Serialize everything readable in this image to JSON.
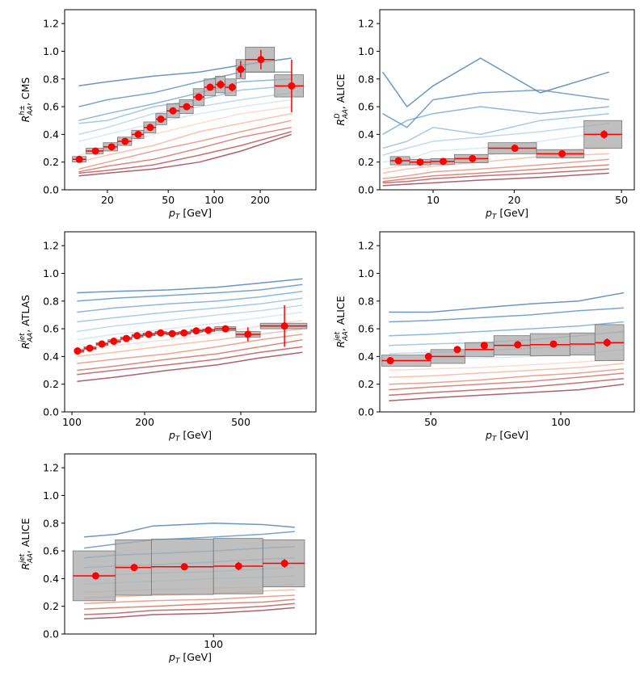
{
  "chart_data": [
    {
      "type": "errorbar",
      "log_x": true,
      "x_label": {
        "main": "p",
        "sub": "T",
        "rest": "[GeV]"
      },
      "y_label": {
        "main": "R",
        "sub": "AA",
        "sup": "h±",
        "rest": ", CMS"
      },
      "xlim": [
        10.5,
        463
      ],
      "xticks": [
        20,
        50,
        100,
        200
      ],
      "ylim": [
        0,
        1.3
      ],
      "yticks": [
        {
          "value": 0,
          "label": "0.0"
        },
        {
          "value": 0.2,
          "label": "0.2"
        },
        {
          "value": 0.4,
          "label": "0.4"
        },
        {
          "value": 0.6,
          "label": "0.6"
        },
        {
          "value": 0.8,
          "label": "0.8"
        },
        {
          "value": 1,
          "label": "1.0"
        },
        {
          "value": 1.2,
          "label": "1.2"
        }
      ],
      "color": "#ff0000",
      "box_color": "#a9a9a9",
      "x": [
        13.1,
        16.7,
        21.3,
        26.1,
        31.8,
        38.1,
        44.7,
        53.7,
        66.0,
        79.3,
        94.0,
        110,
        131,
        149,
        202,
        321
      ],
      "values": [
        0.22,
        0.28,
        0.31,
        0.35,
        0.4,
        0.45,
        0.51,
        0.57,
        0.6,
        0.67,
        0.74,
        0.76,
        0.74,
        0.87,
        0.94,
        0.75
      ],
      "stat": [
        0.01,
        0.01,
        0.01,
        0.01,
        0.01,
        0.01,
        0.01,
        0.01,
        0.01,
        0.02,
        0.02,
        0.03,
        0.03,
        0.06,
        0.07,
        0.19
      ],
      "sys": [
        0.02,
        0.02,
        0.03,
        0.03,
        0.03,
        0.04,
        0.04,
        0.05,
        0.05,
        0.06,
        0.06,
        0.06,
        0.06,
        0.07,
        0.09,
        0.08
      ],
      "bin_edges": [
        11.8,
        14.5,
        18.8,
        23.3,
        28.8,
        34.6,
        41.5,
        48.9,
        59.2,
        72.9,
        86.0,
        102,
        118,
        139,
        160,
        248,
        384
      ],
      "curve_x": [
        13,
        20,
        40,
        80,
        150,
        320
      ],
      "curve_colors": [
        "#2c6aa6",
        "#3f7fb5",
        "#5d9ac7",
        "#7fb3d6",
        "#a4cce3",
        "#c8e0ee",
        "#f6d0bf",
        "#f2a98b",
        "#e07d62",
        "#cc5545",
        "#b23236",
        "#8e1c2e"
      ],
      "curves": [
        [
          0.75,
          0.78,
          0.82,
          0.85,
          0.9,
          0.95
        ],
        [
          0.6,
          0.65,
          0.7,
          0.78,
          0.85,
          0.85
        ],
        [
          0.5,
          0.55,
          0.62,
          0.7,
          0.78,
          0.8
        ],
        [
          0.48,
          0.5,
          0.6,
          0.65,
          0.72,
          0.75
        ],
        [
          0.4,
          0.45,
          0.55,
          0.6,
          0.65,
          0.7
        ],
        [
          0.35,
          0.4,
          0.48,
          0.55,
          0.6,
          0.65
        ],
        [
          0.25,
          0.3,
          0.4,
          0.48,
          0.55,
          0.6
        ],
        [
          0.2,
          0.25,
          0.32,
          0.42,
          0.48,
          0.55
        ],
        [
          0.15,
          0.2,
          0.28,
          0.35,
          0.42,
          0.5
        ],
        [
          0.13,
          0.17,
          0.22,
          0.3,
          0.38,
          0.45
        ],
        [
          0.12,
          0.14,
          0.18,
          0.25,
          0.32,
          0.42
        ],
        [
          0.1,
          0.12,
          0.15,
          0.2,
          0.28,
          0.4
        ]
      ]
    },
    {
      "type": "errorbar",
      "log_x": true,
      "x_label": {
        "main": "p",
        "sub": "T",
        "rest": "[GeV]"
      },
      "y_label": {
        "main": "R",
        "sub": "AA",
        "sup": "D",
        "rest": ", ALICE"
      },
      "xlim": [
        6.34,
        55.8
      ],
      "xticks": [
        10,
        20,
        50
      ],
      "ylim": [
        0,
        1.3
      ],
      "yticks": [
        {
          "value": 0,
          "label": "0.0"
        },
        {
          "value": 0.2,
          "label": "0.2"
        },
        {
          "value": 0.4,
          "label": "0.4"
        },
        {
          "value": 0.6,
          "label": "0.6"
        },
        {
          "value": 0.8,
          "label": "0.8"
        },
        {
          "value": 1,
          "label": "1.0"
        },
        {
          "value": 1.2,
          "label": "1.2"
        }
      ],
      "color": "#ff0000",
      "box_color": "#a9a9a9",
      "x": [
        7.44,
        8.95,
        10.9,
        14.0,
        20.1,
        30.1,
        43.1
      ],
      "values": [
        0.21,
        0.2,
        0.205,
        0.225,
        0.3,
        0.26,
        0.4
      ],
      "stat": [
        0.02,
        0.01,
        0.01,
        0.01,
        0.01,
        0.02,
        0.03
      ],
      "sys": [
        0.03,
        0.02,
        0.02,
        0.03,
        0.04,
        0.03,
        0.1
      ],
      "bin_edges": [
        6.94,
        8.19,
        9.8,
        12.0,
        16.0,
        24.2,
        36.3,
        50.2
      ],
      "curve_x": [
        6.5,
        8,
        10,
        15,
        25,
        45
      ],
      "curve_colors": [
        "#2c6aa6",
        "#3f7fb5",
        "#5d9ac7",
        "#7fb3d6",
        "#a4cce3",
        "#c8e0ee",
        "#f6d0bf",
        "#f2a98b",
        "#e07d62",
        "#cc5545",
        "#b23236",
        "#8e1c2e"
      ],
      "curves": [
        [
          0.85,
          0.6,
          0.75,
          0.95,
          0.7,
          0.85
        ],
        [
          0.55,
          0.45,
          0.65,
          0.7,
          0.72,
          0.65
        ],
        [
          0.4,
          0.5,
          0.55,
          0.6,
          0.55,
          0.6
        ],
        [
          0.3,
          0.35,
          0.45,
          0.4,
          0.5,
          0.55
        ],
        [
          0.25,
          0.3,
          0.35,
          0.38,
          0.42,
          0.48
        ],
        [
          0.2,
          0.22,
          0.28,
          0.3,
          0.35,
          0.42
        ],
        [
          0.15,
          0.18,
          0.2,
          0.25,
          0.28,
          0.3
        ],
        [
          0.12,
          0.15,
          0.17,
          0.2,
          0.24,
          0.26
        ],
        [
          0.08,
          0.1,
          0.13,
          0.15,
          0.18,
          0.22
        ],
        [
          0.06,
          0.08,
          0.1,
          0.12,
          0.15,
          0.18
        ],
        [
          0.05,
          0.06,
          0.08,
          0.1,
          0.12,
          0.15
        ],
        [
          0.03,
          0.04,
          0.05,
          0.07,
          0.09,
          0.12
        ]
      ]
    },
    {
      "type": "errorbar",
      "log_x": true,
      "x_label": {
        "main": "p",
        "sub": "T",
        "rest": "[GeV]"
      },
      "y_label": {
        "main": "R",
        "sub": "AA",
        "sup": "jet",
        "rest": ", ATLAS"
      },
      "xlim": [
        93.3,
        1023
      ],
      "xticks": [
        100,
        200,
        500
      ],
      "ylim": [
        0,
        1.3
      ],
      "yticks": [
        {
          "value": 0,
          "label": "0.0"
        },
        {
          "value": 0.2,
          "label": "0.2"
        },
        {
          "value": 0.4,
          "label": "0.4"
        },
        {
          "value": 0.6,
          "label": "0.6"
        },
        {
          "value": 0.8,
          "label": "0.8"
        },
        {
          "value": 1,
          "label": "1.0"
        },
        {
          "value": 1.2,
          "label": "1.2"
        }
      ],
      "color": "#ff0000",
      "box_color": "#a9a9a9",
      "x": [
        105.5,
        118.5,
        133,
        149,
        168,
        186,
        208,
        233,
        260,
        291,
        327,
        367,
        432,
        535,
        758
      ],
      "values": [
        0.44,
        0.46,
        0.49,
        0.51,
        0.53,
        0.55,
        0.56,
        0.57,
        0.565,
        0.57,
        0.585,
        0.59,
        0.6,
        0.56,
        0.62
      ],
      "stat": [
        0.005,
        0.005,
        0.005,
        0.005,
        0.005,
        0.005,
        0.005,
        0.005,
        0.005,
        0.01,
        0.01,
        0.01,
        0.02,
        0.05,
        0.15
      ],
      "sys": [
        0.01,
        0.01,
        0.01,
        0.01,
        0.01,
        0.01,
        0.01,
        0.01,
        0.01,
        0.01,
        0.01,
        0.01,
        0.015,
        0.02,
        0.02
      ],
      "bin_edges": [
        102.3,
        112.2,
        126,
        141,
        159,
        177,
        197,
        221,
        246,
        276,
        310,
        348,
        390,
        477,
        602,
        939
      ],
      "curve_x": [
        105,
        150,
        250,
        400,
        600,
        900
      ],
      "curve_colors": [
        "#2c6aa6",
        "#3f7fb5",
        "#5d9ac7",
        "#7fb3d6",
        "#a4cce3",
        "#c8e0ee",
        "#f6d0bf",
        "#f2a98b",
        "#e07d62",
        "#cc5545",
        "#b23236",
        "#8e1c2e"
      ],
      "curves": [
        [
          0.86,
          0.87,
          0.88,
          0.9,
          0.93,
          0.96
        ],
        [
          0.8,
          0.82,
          0.84,
          0.86,
          0.88,
          0.92
        ],
        [
          0.72,
          0.75,
          0.78,
          0.8,
          0.83,
          0.87
        ],
        [
          0.65,
          0.68,
          0.72,
          0.75,
          0.78,
          0.82
        ],
        [
          0.58,
          0.62,
          0.66,
          0.7,
          0.73,
          0.77
        ],
        [
          0.52,
          0.56,
          0.6,
          0.64,
          0.68,
          0.72
        ],
        [
          0.45,
          0.48,
          0.52,
          0.57,
          0.62,
          0.66
        ],
        [
          0.4,
          0.43,
          0.48,
          0.52,
          0.56,
          0.6
        ],
        [
          0.35,
          0.38,
          0.42,
          0.47,
          0.52,
          0.56
        ],
        [
          0.3,
          0.33,
          0.38,
          0.42,
          0.47,
          0.52
        ],
        [
          0.27,
          0.3,
          0.34,
          0.38,
          0.43,
          0.47
        ],
        [
          0.22,
          0.25,
          0.3,
          0.34,
          0.39,
          0.43
        ]
      ]
    },
    {
      "type": "errorbar",
      "log_x": true,
      "x_label": {
        "main": "p",
        "sub": "T",
        "rest": "[GeV]"
      },
      "y_label": {
        "main": "R",
        "sub": "AA",
        "sup": "jet",
        "rest": ", ALICE"
      },
      "xlim": [
        38.1,
        148
      ],
      "xticks": [
        50,
        100
      ],
      "ylim": [
        0,
        1.3
      ],
      "yticks": [
        {
          "value": 0,
          "label": "0.0"
        },
        {
          "value": 0.2,
          "label": "0.2"
        },
        {
          "value": 0.4,
          "label": "0.4"
        },
        {
          "value": 0.6,
          "label": "0.6"
        },
        {
          "value": 0.8,
          "label": "0.8"
        },
        {
          "value": 1,
          "label": "1.0"
        },
        {
          "value": 1.2,
          "label": "1.2"
        }
      ],
      "color": "#ff0000",
      "box_color": "#a9a9a9",
      "x": [
        40.3,
        49.4,
        57.6,
        66.5,
        79.5,
        96.2,
        128
      ],
      "values": [
        0.37,
        0.4,
        0.45,
        0.48,
        0.485,
        0.49,
        0.5
      ],
      "stat": [
        0.02,
        0.02,
        0.02,
        0.02,
        0.02,
        0.02,
        0.03
      ],
      "sys": [
        0.04,
        0.05,
        0.05,
        0.07,
        0.08,
        0.08,
        0.13
      ],
      "bin_edges": [
        38.5,
        50,
        60,
        70,
        85,
        105,
        120,
        140
      ],
      "curve_x": [
        40,
        50,
        65,
        85,
        110,
        140
      ],
      "curve_colors": [
        "#2c6aa6",
        "#3f7fb5",
        "#5d9ac7",
        "#7fb3d6",
        "#a4cce3",
        "#c8e0ee",
        "#f6d0bf",
        "#f2a98b",
        "#e07d62",
        "#cc5545",
        "#b23236",
        "#8e1c2e"
      ],
      "curves": [
        [
          0.72,
          0.72,
          0.75,
          0.78,
          0.8,
          0.86
        ],
        [
          0.65,
          0.66,
          0.68,
          0.7,
          0.73,
          0.75
        ],
        [
          0.55,
          0.56,
          0.58,
          0.6,
          0.62,
          0.65
        ],
        [
          0.48,
          0.49,
          0.5,
          0.52,
          0.55,
          0.58
        ],
        [
          0.42,
          0.43,
          0.44,
          0.46,
          0.48,
          0.5
        ],
        [
          0.37,
          0.38,
          0.39,
          0.4,
          0.42,
          0.45
        ],
        [
          0.3,
          0.31,
          0.32,
          0.34,
          0.36,
          0.38
        ],
        [
          0.25,
          0.26,
          0.28,
          0.3,
          0.32,
          0.35
        ],
        [
          0.2,
          0.21,
          0.23,
          0.26,
          0.28,
          0.31
        ],
        [
          0.16,
          0.18,
          0.2,
          0.22,
          0.25,
          0.28
        ],
        [
          0.12,
          0.14,
          0.16,
          0.18,
          0.21,
          0.24
        ],
        [
          0.08,
          0.1,
          0.12,
          0.14,
          0.16,
          0.2
        ]
      ]
    },
    {
      "type": "errorbar",
      "log_x": true,
      "x_label": {
        "main": "p",
        "sub": "T",
        "rest": "[GeV]"
      },
      "y_label": {
        "main": "R",
        "sub": "AA",
        "sup": "jet",
        "rest": ", ALICE"
      },
      "xlim": [
        57.7,
        146
      ],
      "xticks": [
        100
      ],
      "ylim": [
        0,
        1.3
      ],
      "yticks": [
        {
          "value": 0,
          "label": "0.0"
        },
        {
          "value": 0.2,
          "label": "0.2"
        },
        {
          "value": 0.4,
          "label": "0.4"
        },
        {
          "value": 0.6,
          "label": "0.6"
        },
        {
          "value": 0.8,
          "label": "0.8"
        },
        {
          "value": 1,
          "label": "1.0"
        },
        {
          "value": 1.2,
          "label": "1.2"
        }
      ],
      "color": "#ff0000",
      "box_color": "#a9a9a9",
      "x": [
        64.7,
        74.6,
        89.8,
        109.7,
        130
      ],
      "values": [
        0.42,
        0.48,
        0.485,
        0.49,
        0.51
      ],
      "stat": [
        0.02,
        0.02,
        0.02,
        0.03,
        0.03
      ],
      "sys": [
        0.18,
        0.2,
        0.2,
        0.2,
        0.17
      ],
      "bin_edges": [
        59.5,
        69.6,
        79.5,
        100,
        120,
        140
      ],
      "curve_x": [
        62,
        70,
        80,
        100,
        120,
        135
      ],
      "curve_colors": [
        "#2c6aa6",
        "#3f7fb5",
        "#5d9ac7",
        "#7fb3d6",
        "#a4cce3",
        "#c8e0ee",
        "#f6d0bf",
        "#f2a98b",
        "#e07d62",
        "#cc5545",
        "#b23236",
        "#8e1c2e"
      ],
      "curves": [
        [
          0.7,
          0.72,
          0.78,
          0.8,
          0.79,
          0.77
        ],
        [
          0.62,
          0.65,
          0.68,
          0.7,
          0.72,
          0.74
        ],
        [
          0.55,
          0.57,
          0.58,
          0.6,
          0.62,
          0.63
        ],
        [
          0.48,
          0.49,
          0.5,
          0.52,
          0.54,
          0.55
        ],
        [
          0.42,
          0.43,
          0.44,
          0.45,
          0.47,
          0.48
        ],
        [
          0.36,
          0.37,
          0.38,
          0.4,
          0.41,
          0.42
        ],
        [
          0.3,
          0.31,
          0.32,
          0.33,
          0.34,
          0.36
        ],
        [
          0.26,
          0.27,
          0.28,
          0.29,
          0.31,
          0.32
        ],
        [
          0.22,
          0.23,
          0.24,
          0.25,
          0.27,
          0.28
        ],
        [
          0.18,
          0.19,
          0.2,
          0.22,
          0.23,
          0.25
        ],
        [
          0.14,
          0.15,
          0.17,
          0.18,
          0.2,
          0.22
        ],
        [
          0.11,
          0.12,
          0.14,
          0.15,
          0.17,
          0.19
        ]
      ]
    }
  ]
}
